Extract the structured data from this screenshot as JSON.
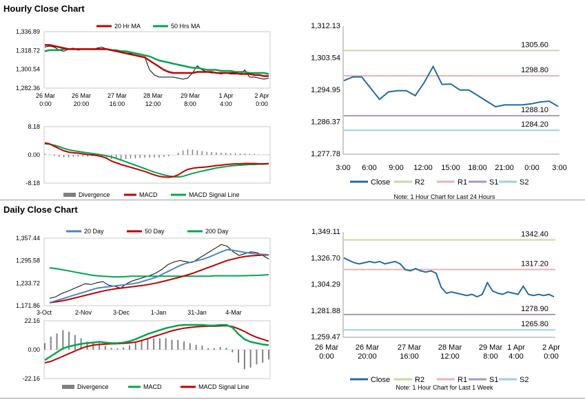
{
  "sections": {
    "hourly_title": "Hourly Close Chart",
    "daily_title": "Daily Close Chart"
  },
  "chart_data": [
    {
      "id": "hourly_price",
      "type": "line",
      "legend": [
        "20 Hr MA",
        "50 Hrs MA"
      ],
      "colors": {
        "close": "#000000",
        "ma20": "#c00000",
        "ma50": "#00a550"
      },
      "ylim": [
        1282.36,
        1336.89
      ],
      "yticks": [
        "1,336.89",
        "1,318.72",
        "1,300.54",
        "1,282.36"
      ],
      "xticks": [
        [
          "26 Mar",
          "0:00"
        ],
        [
          "26 Mar",
          "20:00"
        ],
        [
          "27 Mar",
          "16:00"
        ],
        [
          "28 Mar",
          "12:00"
        ],
        [
          "29 Mar",
          "8:00"
        ],
        [
          "1 Apr",
          "4:00"
        ],
        [
          "2 Apr",
          "0:00"
        ]
      ],
      "close": [
        1322,
        1323,
        1322,
        1319,
        1318,
        1320,
        1321,
        1319,
        1320,
        1320,
        1320,
        1321,
        1322,
        1320,
        1319,
        1318,
        1317,
        1316,
        1316,
        1314,
        1313,
        1312,
        1300,
        1295,
        1293,
        1293,
        1293,
        1293,
        1292,
        1291,
        1292,
        1297,
        1304,
        1300,
        1298,
        1297,
        1297,
        1296,
        1297,
        1296,
        1296,
        1296,
        1300,
        1293,
        1293,
        1292,
        1291,
        1292
      ],
      "ma20": [
        1324,
        1324,
        1323,
        1322,
        1321,
        1320,
        1320,
        1320,
        1320,
        1320,
        1320,
        1320,
        1320,
        1320,
        1319,
        1318,
        1317,
        1316,
        1315,
        1314,
        1313,
        1312,
        1309,
        1306,
        1303,
        1300,
        1298,
        1297,
        1297,
        1297,
        1297,
        1297,
        1298,
        1298,
        1298,
        1298,
        1297,
        1297,
        1297,
        1297,
        1297,
        1296,
        1296,
        1296,
        1295,
        1295,
        1294,
        1294
      ],
      "ma50": [
        1318,
        1319,
        1319,
        1319,
        1320,
        1320,
        1320,
        1320,
        1320,
        1320,
        1320,
        1320,
        1320,
        1320,
        1319,
        1319,
        1318,
        1318,
        1317,
        1316,
        1315,
        1314,
        1313,
        1311,
        1309,
        1308,
        1307,
        1306,
        1305,
        1304,
        1303,
        1302,
        1302,
        1301,
        1300,
        1300,
        1300,
        1299,
        1299,
        1299,
        1298,
        1298,
        1298,
        1297,
        1297,
        1297,
        1297,
        1296
      ]
    },
    {
      "id": "hourly_macd",
      "type": "line",
      "legend": [
        "Divergence",
        "MACD",
        "MACD Signal Line"
      ],
      "colors": {
        "divergence": "#808080",
        "macd": "#c00000",
        "signal": "#00a550"
      },
      "ylim": [
        -8.18,
        8.18
      ],
      "yticks": [
        "8.18",
        "0.00",
        "-8.18"
      ],
      "macd": [
        3.5,
        3.2,
        2.5,
        1.8,
        1.2,
        0.8,
        0.6,
        0.5,
        0.3,
        0.1,
        0,
        -0.2,
        -0.5,
        -1,
        -1.8,
        -2.3,
        -2.8,
        -3.2,
        -3.6,
        -4,
        -4.4,
        -4.8,
        -5.3,
        -5.8,
        -6.2,
        -6.4,
        -6.5,
        -6.3,
        -5.8,
        -4.9,
        -4.2,
        -3.9,
        -3.7,
        -3.6,
        -3.5,
        -3.3,
        -3.1,
        -3,
        -2.8,
        -2.7,
        -2.6,
        -2.6,
        -2.5,
        -2.5,
        -2.5,
        -2.6,
        -2.6,
        -2.5
      ],
      "signal": [
        3.2,
        3.1,
        2.8,
        2.4,
        1.9,
        1.5,
        1.2,
        1,
        0.8,
        0.6,
        0.4,
        0.2,
        0,
        -0.3,
        -0.6,
        -1,
        -1.5,
        -2,
        -2.5,
        -3,
        -3.5,
        -4,
        -4.5,
        -5,
        -5.4,
        -5.8,
        -6.1,
        -6.3,
        -6.4,
        -6.2,
        -5.8,
        -5.4,
        -5,
        -4.7,
        -4.4,
        -4.1,
        -3.8,
        -3.6,
        -3.4,
        -3.2,
        -3.1,
        -3,
        -2.9,
        -2.8,
        -2.8,
        -2.7,
        -2.7,
        -2.6
      ]
    },
    {
      "id": "hourly_pivot",
      "type": "line",
      "ylim": [
        1277.78,
        1312.13
      ],
      "yticks": [
        "1,312.13",
        "1,303.54",
        "1,294.95",
        "1,286.37",
        "1,277.78"
      ],
      "xticks": [
        "3:00",
        "6:00",
        "9:00",
        "12:00",
        "15:00",
        "18:00",
        "21:00",
        "0:00",
        "3:00"
      ],
      "close": [
        1297.5,
        1298.5,
        1298.5,
        1295.5,
        1292.5,
        1294.5,
        1294.8,
        1294.8,
        1293.5,
        1297,
        1301.3,
        1296.5,
        1296.6,
        1295,
        1295,
        1293.5,
        1292,
        1290.5,
        1291,
        1291,
        1291,
        1291.3,
        1291.8,
        1292,
        1290.6
      ],
      "levels": [
        {
          "name": "R2",
          "value": 1305.6,
          "label": "1305.60",
          "color": "#c5d9a0"
        },
        {
          "name": "R1",
          "value": 1298.8,
          "label": "1298.80",
          "color": "#e6b4b4"
        },
        {
          "name": "S1",
          "value": 1288.1,
          "label": "1288.10",
          "color": "#a996c0"
        },
        {
          "name": "S2",
          "value": 1284.2,
          "label": "1284.20",
          "color": "#9cd0e0"
        }
      ],
      "legend": [
        "Close",
        "R2",
        "R1",
        "S1",
        "S2"
      ],
      "close_color": "#1f6aa5",
      "note": "Note: 1 Hour Chart for Last 24 Hours"
    },
    {
      "id": "daily_price",
      "type": "line",
      "legend": [
        "20 Day",
        "50 Day",
        "200 Day"
      ],
      "colors": {
        "close": "#000000",
        "ma20": "#4a86c0",
        "ma50": "#c00000",
        "ma200": "#00a550"
      },
      "ylim": [
        1171.86,
        1357.44
      ],
      "yticks": [
        "1,357.44",
        "1,295.58",
        "1,233.72",
        "1,171.86"
      ],
      "xticks": [
        "3-Oct",
        "2-Nov",
        "3-Dec",
        "1-Jan",
        "31-Jan",
        "4-Mar"
      ],
      "close": [
        1192,
        1196,
        1205,
        1211,
        1218,
        1225,
        1232,
        1230,
        1235,
        1238,
        1228,
        1225,
        1220,
        1232,
        1240,
        1245,
        1250,
        1255,
        1262,
        1272,
        1285,
        1292,
        1296,
        1293,
        1290,
        1300,
        1310,
        1320,
        1330,
        1340,
        1335,
        1320,
        1310,
        1315,
        1320,
        1318,
        1310,
        1300
      ],
      "ma20": [
        1180,
        1185,
        1190,
        1195,
        1200,
        1205,
        1210,
        1215,
        1220,
        1222,
        1224,
        1226,
        1228,
        1230,
        1232,
        1235,
        1240,
        1245,
        1250,
        1258,
        1266,
        1274,
        1282,
        1288,
        1292,
        1296,
        1300,
        1306,
        1313,
        1320,
        1326,
        1324,
        1321,
        1318,
        1316,
        1314,
        1313,
        1312
      ],
      "ma50": [
        1180,
        1182,
        1185,
        1188,
        1192,
        1196,
        1200,
        1204,
        1208,
        1212,
        1215,
        1218,
        1220,
        1222,
        1224,
        1226,
        1228,
        1231,
        1234,
        1238,
        1242,
        1246,
        1250,
        1255,
        1260,
        1266,
        1272,
        1278,
        1284,
        1290,
        1296,
        1300,
        1304,
        1307,
        1309,
        1310,
        1311,
        1311
      ],
      "ma200": [
        1276,
        1274,
        1271,
        1268,
        1265,
        1262,
        1259,
        1256,
        1254,
        1253,
        1252,
        1251,
        1251,
        1252,
        1253,
        1253,
        1253,
        1253,
        1253,
        1253,
        1253,
        1253,
        1253,
        1253,
        1253,
        1253,
        1253,
        1253,
        1254,
        1254,
        1254,
        1254,
        1254,
        1254,
        1255,
        1255,
        1256,
        1257
      ]
    },
    {
      "id": "daily_macd",
      "type": "line",
      "legend": [
        "Divergence",
        "MACD",
        "MACD Signal Line"
      ],
      "colors": {
        "divergence": "#808080",
        "macd": "#00a550",
        "signal": "#c00000"
      },
      "ylim": [
        -22.16,
        22.16
      ],
      "yticks": [
        "22.16",
        "0.00",
        "-22.16"
      ],
      "macd": [
        -8,
        -5,
        -2,
        1,
        2.5,
        3.5,
        4.5,
        5,
        5.5,
        6,
        5.5,
        5,
        5,
        5.5,
        6.5,
        8,
        10,
        12,
        13.5,
        15,
        16.5,
        17.5,
        18.5,
        19,
        19,
        19,
        19,
        18.5,
        18.5,
        19,
        19,
        17,
        12,
        8,
        6,
        5,
        4,
        3.5
      ],
      "signal": [
        -10,
        -9,
        -7,
        -5,
        -3,
        -1,
        1,
        2.5,
        3.5,
        4,
        4.3,
        4.5,
        4.6,
        4.8,
        5.2,
        5.8,
        7,
        8.5,
        10,
        11.5,
        13,
        14.5,
        15.5,
        16.5,
        17,
        17.5,
        17.8,
        18,
        18,
        18.2,
        18.4,
        17.8,
        16,
        14,
        11.5,
        9.5,
        8,
        6.5
      ]
    },
    {
      "id": "daily_pivot",
      "type": "line",
      "ylim": [
        1259.47,
        1349.11
      ],
      "yticks": [
        "1,349.11",
        "1,326.70",
        "1,304.29",
        "1,281.88",
        "1,259.47"
      ],
      "xticks": [
        [
          "26 Mar",
          "0:00"
        ],
        [
          "26 Mar",
          "20:00"
        ],
        [
          "27 Mar",
          "16:00"
        ],
        [
          "28 Mar",
          "12:00"
        ],
        [
          "29 Mar",
          "8:00"
        ],
        [
          "1 Apr",
          "4:00"
        ],
        [
          "2 Apr",
          "0:00"
        ]
      ],
      "close": [
        1327,
        1325,
        1323,
        1322,
        1323,
        1324,
        1323,
        1324,
        1322,
        1323,
        1324,
        1322,
        1317,
        1316,
        1318,
        1316,
        1315,
        1316,
        1314,
        1302,
        1297,
        1298,
        1297,
        1296,
        1295,
        1296,
        1294,
        1296,
        1306,
        1299,
        1297,
        1296,
        1298,
        1297,
        1296,
        1303,
        1296,
        1295,
        1296,
        1295,
        1296,
        1294
      ],
      "levels": [
        {
          "name": "R2",
          "value": 1342.4,
          "label": "1342.40",
          "color": "#c5d9a0"
        },
        {
          "name": "R1",
          "value": 1317.2,
          "label": "1317.20",
          "color": "#e6b4b4"
        },
        {
          "name": "S1",
          "value": 1278.9,
          "label": "1278.90",
          "color": "#a996c0"
        },
        {
          "name": "S2",
          "value": 1265.8,
          "label": "1265.80",
          "color": "#9cd0e0"
        }
      ],
      "legend": [
        "Close",
        "R2",
        "R1",
        "S1",
        "S2"
      ],
      "close_color": "#1f6aa5",
      "note": "Note: 1 Hour Chart for Last 1 Week"
    }
  ]
}
